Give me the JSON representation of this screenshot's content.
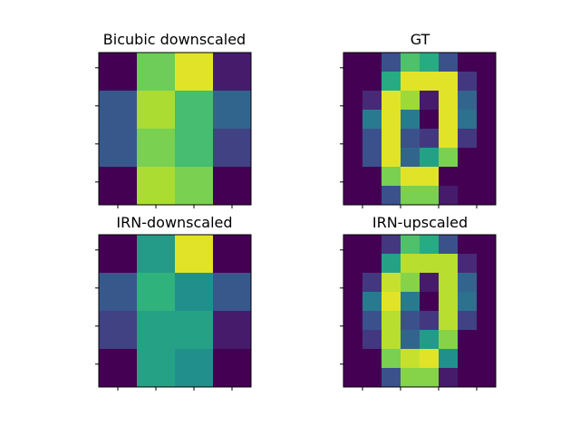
{
  "chart_data": [
    {
      "type": "heatmap",
      "title": "Bicubic downscaled",
      "colormap": "viridis",
      "rows": 4,
      "cols": 4,
      "values": [
        [
          0.0,
          0.78,
          0.96,
          0.08
        ],
        [
          0.28,
          0.88,
          0.7,
          0.33
        ],
        [
          0.28,
          0.8,
          0.7,
          0.2
        ],
        [
          0.0,
          0.88,
          0.8,
          0.0
        ]
      ],
      "xtick_labels": [],
      "ytick_labels": []
    },
    {
      "type": "heatmap",
      "title": "GT",
      "colormap": "viridis",
      "rows": 8,
      "cols": 8,
      "values": [
        [
          0.0,
          0.0,
          0.25,
          0.72,
          0.62,
          0.25,
          0.0,
          0.0
        ],
        [
          0.0,
          0.0,
          0.62,
          0.96,
          0.96,
          0.96,
          0.17,
          0.0
        ],
        [
          0.0,
          0.12,
          0.96,
          0.86,
          0.08,
          0.96,
          0.33,
          0.0
        ],
        [
          0.0,
          0.42,
          0.96,
          0.42,
          0.0,
          0.96,
          0.38,
          0.0
        ],
        [
          0.0,
          0.25,
          0.96,
          0.25,
          0.17,
          0.96,
          0.17,
          0.0
        ],
        [
          0.0,
          0.25,
          0.96,
          0.33,
          0.57,
          0.8,
          0.0,
          0.0
        ],
        [
          0.0,
          0.0,
          0.8,
          0.96,
          0.96,
          0.0,
          0.0,
          0.0
        ],
        [
          0.0,
          0.0,
          0.25,
          0.8,
          0.8,
          0.08,
          0.0,
          0.0
        ]
      ],
      "xtick_labels": [],
      "ytick_labels": []
    },
    {
      "type": "heatmap",
      "title": "IRN-downscaled",
      "colormap": "viridis",
      "rows": 4,
      "cols": 4,
      "values": [
        [
          0.0,
          0.55,
          0.96,
          0.0
        ],
        [
          0.28,
          0.65,
          0.5,
          0.28
        ],
        [
          0.2,
          0.58,
          0.58,
          0.08
        ],
        [
          0.0,
          0.58,
          0.5,
          0.0
        ]
      ],
      "xtick_labels": [],
      "ytick_labels": []
    },
    {
      "type": "heatmap",
      "title": "IRN-upscaled",
      "colormap": "viridis",
      "rows": 8,
      "cols": 8,
      "values": [
        [
          0.0,
          0.0,
          0.17,
          0.72,
          0.62,
          0.25,
          0.0,
          0.0
        ],
        [
          0.0,
          0.0,
          0.58,
          0.9,
          0.9,
          0.9,
          0.12,
          0.0
        ],
        [
          0.0,
          0.17,
          0.92,
          0.82,
          0.08,
          0.9,
          0.33,
          0.0
        ],
        [
          0.0,
          0.42,
          0.96,
          0.42,
          0.0,
          0.9,
          0.38,
          0.0
        ],
        [
          0.0,
          0.25,
          0.9,
          0.25,
          0.17,
          0.9,
          0.2,
          0.0
        ],
        [
          0.0,
          0.17,
          0.9,
          0.33,
          0.55,
          0.82,
          0.0,
          0.0
        ],
        [
          0.0,
          0.0,
          0.8,
          0.92,
          0.96,
          0.5,
          0.0,
          0.0
        ],
        [
          0.0,
          0.0,
          0.25,
          0.82,
          0.82,
          0.08,
          0.0,
          0.0
        ]
      ],
      "xtick_labels": [],
      "ytick_labels": []
    }
  ]
}
